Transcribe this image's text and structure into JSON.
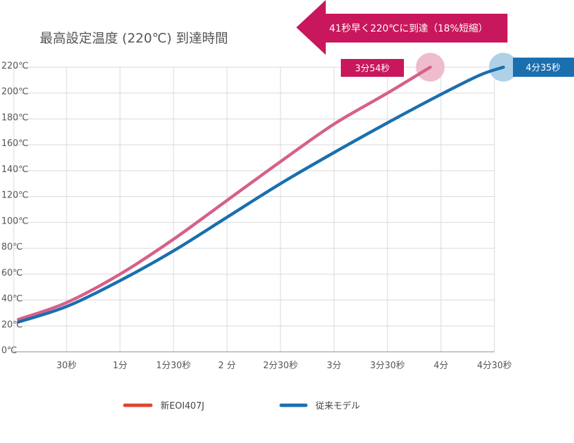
{
  "chart_data": {
    "type": "line",
    "title": "最高設定温度 (220℃) 到達時間",
    "xlabel": "",
    "ylabel": "",
    "x_ticks": [
      {
        "t": 30,
        "label": "30秒"
      },
      {
        "t": 60,
        "label": "1分"
      },
      {
        "t": 90,
        "label": "1分30秒"
      },
      {
        "t": 120,
        "label": "2 分"
      },
      {
        "t": 150,
        "label": "2分30秒"
      },
      {
        "t": 180,
        "label": "3分"
      },
      {
        "t": 210,
        "label": "3分30秒"
      },
      {
        "t": 240,
        "label": "4分"
      },
      {
        "t": 270,
        "label": "4分30秒"
      }
    ],
    "xlim": [
      0,
      270
    ],
    "y_ticks": [
      {
        "v": 0,
        "label": "0℃"
      },
      {
        "v": 20,
        "label": "20℃"
      },
      {
        "v": 40,
        "label": "40℃"
      },
      {
        "v": 60,
        "label": "60℃"
      },
      {
        "v": 80,
        "label": "80℃"
      },
      {
        "v": 100,
        "label": "100℃"
      },
      {
        "v": 120,
        "label": "120℃"
      },
      {
        "v": 140,
        "label": "140℃"
      },
      {
        "v": 160,
        "label": "160℃"
      },
      {
        "v": 180,
        "label": "180℃"
      },
      {
        "v": 200,
        "label": "200℃"
      },
      {
        "v": 220,
        "label": "220℃"
      }
    ],
    "ylim": [
      0,
      220
    ],
    "grid": true,
    "series": [
      {
        "name": "新EOI407J",
        "color": "#d6608a",
        "legend_color": "#e0442e",
        "end_label": "3分54秒",
        "end_label_color": "#c8175c",
        "marker_color": "#efbccd",
        "points": [
          [
            3,
            25
          ],
          [
            30,
            38
          ],
          [
            60,
            60
          ],
          [
            90,
            87
          ],
          [
            120,
            117
          ],
          [
            150,
            147
          ],
          [
            180,
            176
          ],
          [
            210,
            200
          ],
          [
            234,
            220
          ]
        ]
      },
      {
        "name": "従来モデル",
        "color": "#1a6faf",
        "legend_color": "#1a6faf",
        "end_label": "4分35秒",
        "end_label_color": "#1a6faf",
        "marker_color": "#aed1e8",
        "points": [
          [
            3,
            23
          ],
          [
            30,
            35
          ],
          [
            60,
            55
          ],
          [
            90,
            78
          ],
          [
            120,
            104
          ],
          [
            150,
            130
          ],
          [
            180,
            154
          ],
          [
            210,
            177
          ],
          [
            240,
            199
          ],
          [
            262,
            214
          ],
          [
            275,
            220
          ]
        ]
      }
    ],
    "annotations": [
      {
        "text": "41秒早く220℃に到達（18%短縮）",
        "color": "#c8175c"
      }
    ]
  }
}
